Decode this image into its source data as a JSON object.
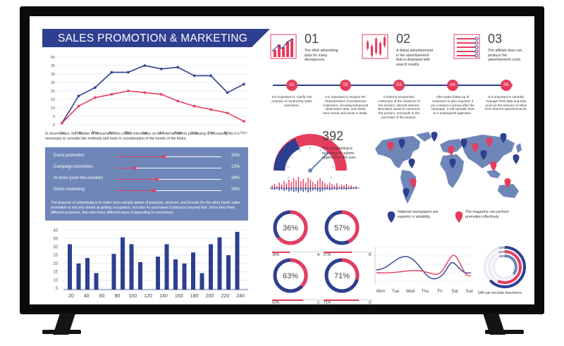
{
  "title": "SALES PROMOTION & MARKETING",
  "colors": {
    "navy": "#2e3f8f",
    "pink": "#e63d5f",
    "slate": "#6f86b9",
    "light": "#c9cfe3"
  },
  "line_chart": {
    "y_ticks": [
      "40",
      "35",
      "30",
      "25",
      "20",
      "15",
      "10",
      "5",
      "0"
    ],
    "months": [
      "Jan",
      "Feb",
      "Mar",
      "Apr",
      "May",
      "Jun",
      "Jul",
      "Aug",
      "Sep",
      "Oct",
      "Nov",
      "Dec"
    ]
  },
  "intro_paragraph": "In recent years, the number of consumers who collect information on the Internet before purchasing is increasing, so it is necessary to consider the methods and tools in consideration of the trends of the times.",
  "promo_rows": [
    {
      "label": "Event promotion",
      "pct": "33%",
      "value": 0.33
    },
    {
      "label": "Campaign promotion",
      "pct": "13%",
      "value": 0.13
    },
    {
      "label": "In-store (over-the-counter)",
      "pct": "28%",
      "value": 0.28
    },
    {
      "label": "Direct marketing",
      "pct": "26%",
      "value": 0.26
    }
  ],
  "box_paragraph": "The purpose of advertising is to make more people aware of products, services, and brands.On the other hand, sales promotion is not only aimed at getting recognition, but also for purchases (contracts) beyond that .Since they have different purposes, they also have different ways of appealing to consumers.",
  "bar_chart": {
    "y_ticks": [
      "40",
      "35",
      "30",
      "25",
      "20",
      "15",
      "10",
      "5"
    ],
    "x_ticks": [
      "20",
      "40",
      "60",
      "80",
      "100",
      "120",
      "140",
      "160",
      "180",
      "200",
      "220",
      "240"
    ]
  },
  "infos": [
    {
      "num": "01",
      "text": "The Web advertising lasts for many divergences."
    },
    {
      "num": "02",
      "text": "A listing advertisement is the advertisement that is displayed with search results."
    },
    {
      "num": "03",
      "text": "The affiliate does not produce the advertisement costs."
    }
  ],
  "timeline": [
    {
      "num": "01",
      "text": "It is important to \"clarify\" the purpose of conducting sales promotion."
    },
    {
      "num": "02",
      "text": "It is important to analyze the characteristics of prospective customers, including behavioral observation data, and clarify their needs and wants in detail."
    },
    {
      "num": "03",
      "text": "It informs prospective customers of the existence of the product, attracts interest, stimulates wants to memorize the product, and leads to the purchase of the product."
    },
    {
      "num": "04",
      "text": "After-sales follow-up of customers is also required. If you conduct a survey after the campaign, it will naturally lead to a subsequent approach."
    },
    {
      "num": "05",
      "text": "It is important to centrally manage POS data and data such as the amount of inflow from Internet advertisements."
    }
  ],
  "gauge": {
    "number": "392",
    "text": "The remarketing is technique to submit approach to the user."
  },
  "map_legend": [
    {
      "text": "National newspapers are superior in reliability.",
      "color": "#2e3f8f"
    },
    {
      "text": "The magazine can perform promotion effectively.",
      "color": "#e63d5f"
    }
  ],
  "donuts": [
    {
      "pct": "36%",
      "label_pct": "36%",
      "letter": "A",
      "value": 0.36
    },
    {
      "pct": "57%",
      "label_pct": "57%",
      "letter": "B",
      "value": 0.57
    },
    {
      "pct": "63%",
      "label_pct": "63%",
      "letter": "C",
      "value": 0.63
    },
    {
      "pct": "71%",
      "label_pct": "71%",
      "letter": "D",
      "value": 0.71
    }
  ],
  "week_chart": {
    "days": [
      "Mon",
      "Tue",
      "Wed",
      "Thu",
      "Fri",
      "Sat",
      "Sun"
    ]
  },
  "radial": {
    "labels": [
      "63%",
      "57%",
      "36%"
    ],
    "caption": "DM can enclose brochures."
  }
}
